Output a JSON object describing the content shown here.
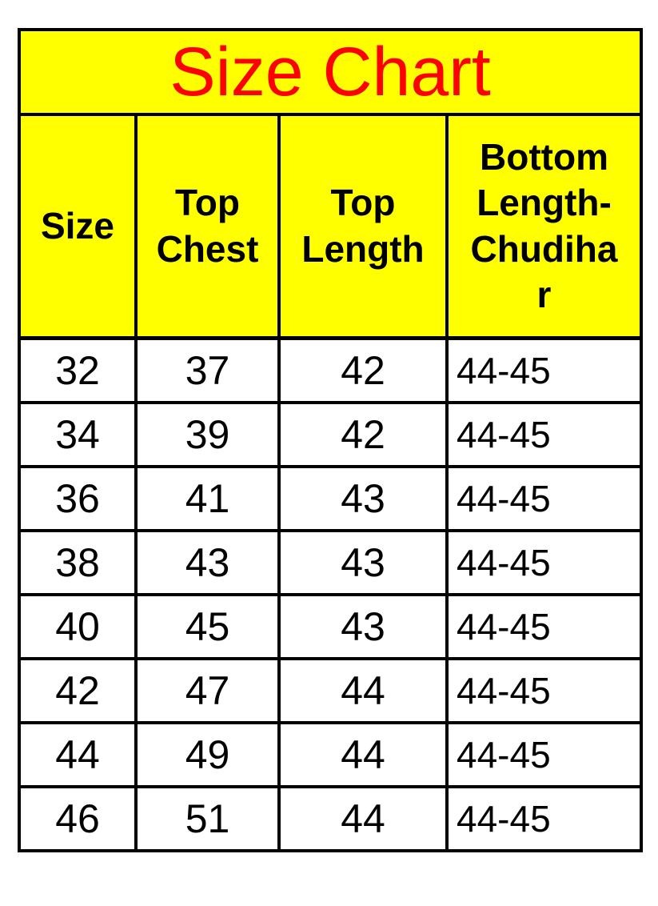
{
  "title": "Size Chart",
  "colors": {
    "header_bg": "#ffff00",
    "title_color": "#ff0000",
    "row_bg": "#ffffff",
    "border": "#000000",
    "text": "#000000"
  },
  "chart_data": {
    "type": "table",
    "title": "Size Chart",
    "columns": [
      "Size",
      "Top Chest",
      "Top Length",
      "Bottom Length-Chudihar"
    ],
    "rows": [
      [
        "32",
        "37",
        "42",
        "44-45"
      ],
      [
        "34",
        "39",
        "42",
        "44-45"
      ],
      [
        "36",
        "41",
        "43",
        "44-45"
      ],
      [
        "38",
        "43",
        "43",
        "44-45"
      ],
      [
        "40",
        "45",
        "43",
        "44-45"
      ],
      [
        "42",
        "47",
        "44",
        "44-45"
      ],
      [
        "44",
        "49",
        "44",
        "44-45"
      ],
      [
        "46",
        "51",
        "44",
        "44-45"
      ]
    ]
  },
  "table": {
    "headers": [
      {
        "label": "Size",
        "lines": [
          "Size"
        ]
      },
      {
        "label": "Top Chest",
        "lines": [
          "Top",
          "Chest"
        ]
      },
      {
        "label": "Top Length",
        "lines": [
          "Top",
          "Length"
        ]
      },
      {
        "label": "Bottom Length-Chudihar",
        "lines": [
          "Bottom",
          "Length-",
          "Chudiha",
          "r"
        ]
      }
    ]
  }
}
